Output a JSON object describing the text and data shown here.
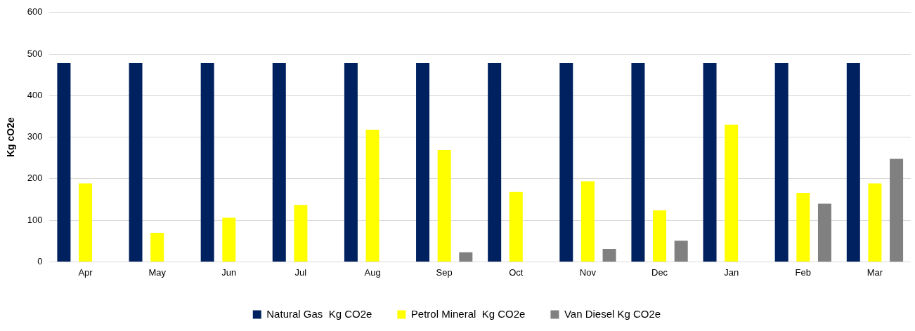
{
  "chart_data": {
    "type": "bar",
    "ylabel": "Kg cO2e",
    "categories": [
      "Apr",
      "May",
      "Jun",
      "Jul",
      "Aug",
      "Sep",
      "Oct",
      "Nov",
      "Dec",
      "Jan",
      "Feb",
      "Mar"
    ],
    "series": [
      {
        "name": "Natural Gas  Kg CO2e",
        "color": "#00215f",
        "values": [
          478,
          478,
          478,
          478,
          478,
          478,
          478,
          478,
          478,
          478,
          478,
          478
        ]
      },
      {
        "name": "Petrol Mineral  Kg CO2e",
        "color": "#ffff00",
        "values": [
          189,
          70,
          106,
          137,
          318,
          269,
          168,
          194,
          124,
          330,
          166,
          189
        ]
      },
      {
        "name": "Van Diesel Kg CO2e",
        "color": "#808080",
        "values": [
          null,
          null,
          null,
          null,
          null,
          23,
          null,
          31,
          51,
          null,
          140,
          248
        ]
      }
    ],
    "ylim": [
      0,
      600
    ],
    "yticks": [
      0,
      100,
      200,
      300,
      400,
      500,
      600
    ],
    "grid": "y",
    "legend": "bottom"
  }
}
